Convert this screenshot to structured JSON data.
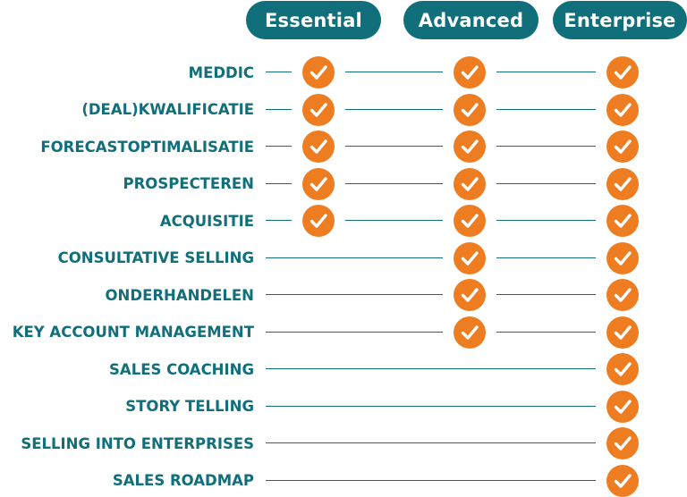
{
  "plans": [
    "Essential",
    "Advanced",
    "Enterprise"
  ],
  "features": [
    {
      "label": "MEDDIC",
      "included": [
        true,
        true,
        true
      ]
    },
    {
      "label": "(DEAL)KWALIFICATIE",
      "included": [
        true,
        true,
        true
      ]
    },
    {
      "label": "FORECASTOPTIMALISATIE",
      "included": [
        true,
        true,
        true
      ]
    },
    {
      "label": "PROSPECTEREN",
      "included": [
        true,
        true,
        true
      ]
    },
    {
      "label": "ACQUISITIE",
      "included": [
        true,
        true,
        true
      ]
    },
    {
      "label": "CONSULTATIVE SELLING",
      "included": [
        false,
        true,
        true
      ]
    },
    {
      "label": "ONDERHANDELEN",
      "included": [
        false,
        true,
        true
      ]
    },
    {
      "label": "KEY ACCOUNT MANAGEMENT",
      "included": [
        false,
        true,
        true
      ]
    },
    {
      "label": "SALES COACHING",
      "included": [
        false,
        false,
        true
      ]
    },
    {
      "label": "STORY TELLING",
      "included": [
        false,
        false,
        true
      ]
    },
    {
      "label": "SELLING INTO ENTERPRISES",
      "included": [
        false,
        false,
        true
      ]
    },
    {
      "label": "SALES ROADMAP",
      "included": [
        false,
        false,
        true
      ]
    }
  ],
  "colors": {
    "primary": "#106f7a",
    "check": "#ee7d22"
  },
  "icon": "check-circle-icon"
}
